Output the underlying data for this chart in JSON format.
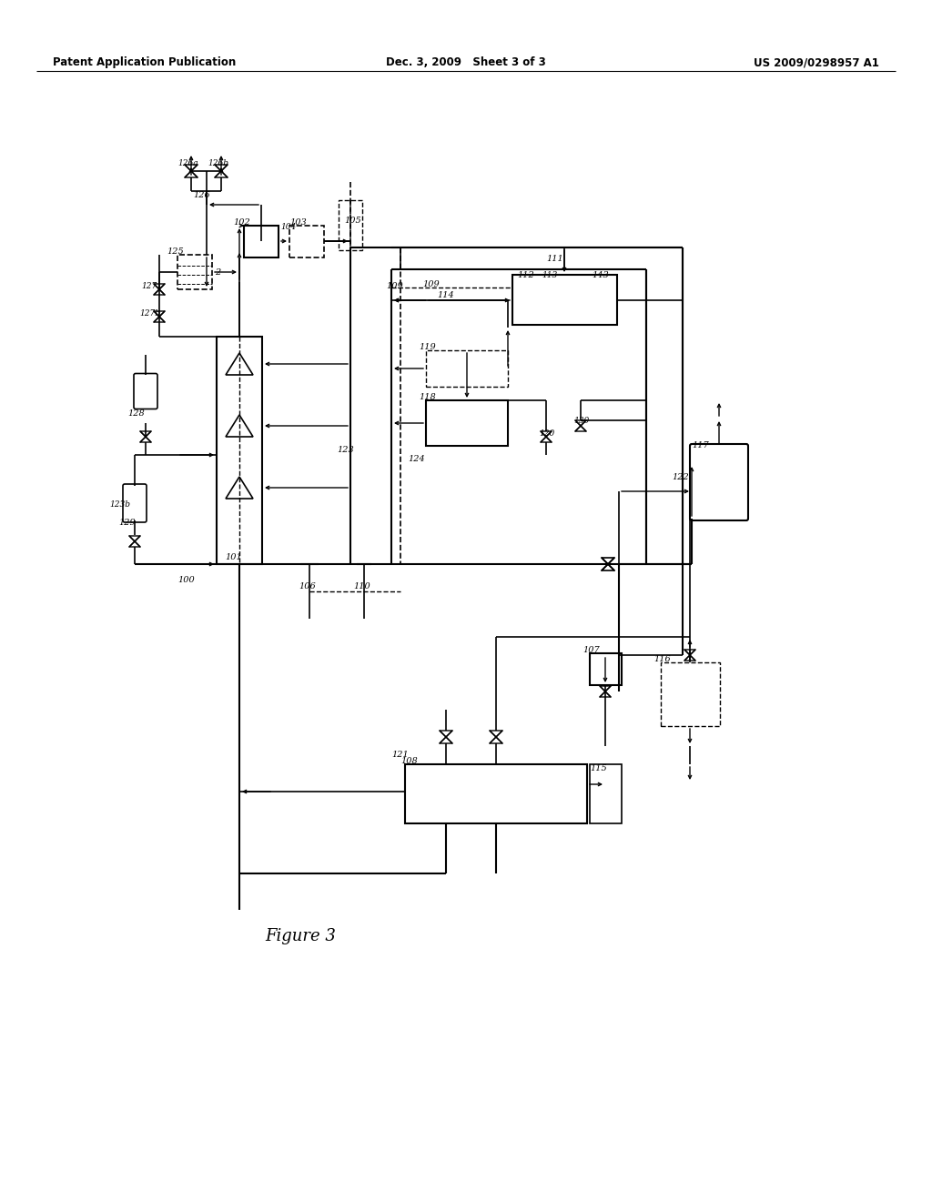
{
  "header_left": "Patent Application Publication",
  "header_mid": "Dec. 3, 2009   Sheet 3 of 3",
  "header_right": "US 2009/0298957 A1",
  "figure_label": "Figure 3",
  "bg_color": "#ffffff"
}
